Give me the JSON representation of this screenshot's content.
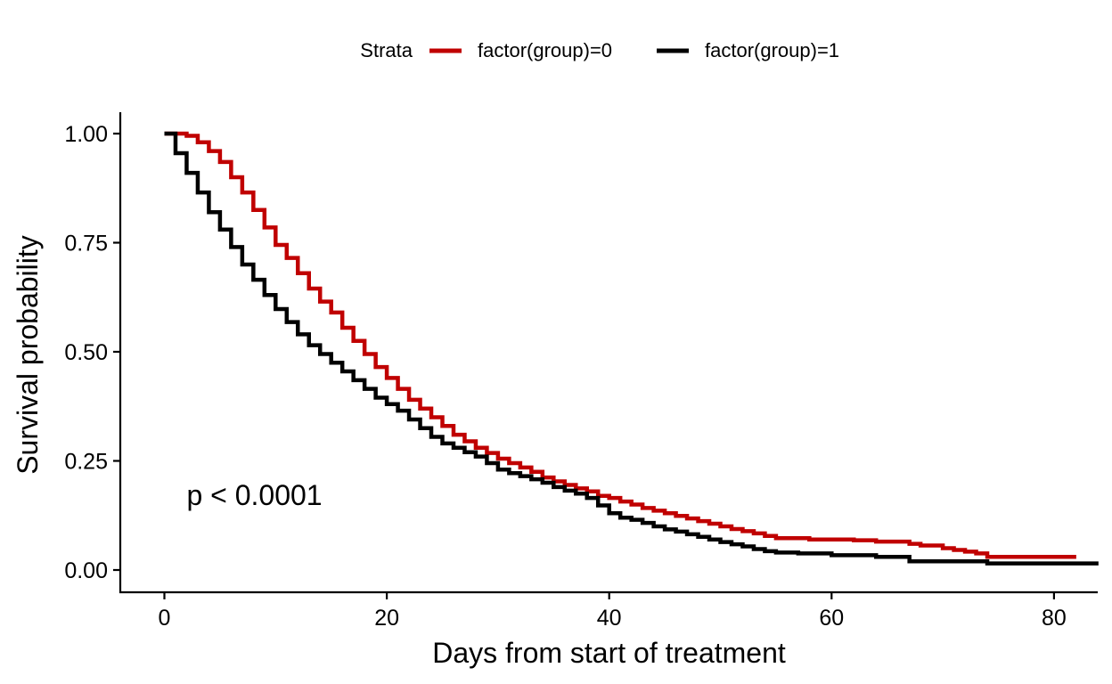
{
  "chart_data": {
    "type": "line",
    "title": "",
    "xlabel": "Days from start of treatment",
    "ylabel": "Survival probability",
    "xlim": [
      -5,
      84
    ],
    "ylim": [
      -0.05,
      1.05
    ],
    "x_ticks": [
      0,
      20,
      40,
      60,
      80
    ],
    "y_ticks": [
      0.0,
      0.25,
      0.5,
      0.75,
      1.0
    ],
    "x_tick_labels": [
      "0",
      "20",
      "40",
      "60",
      "80"
    ],
    "y_tick_labels": [
      "0.00",
      "0.25",
      "0.50",
      "0.75",
      "1.00"
    ],
    "grid": false,
    "step": true,
    "legend": {
      "title": "Strata",
      "position": "top",
      "entries": [
        "factor(group)=0",
        "factor(group)=1"
      ]
    },
    "annotation": {
      "text": "p < 0.0001",
      "x": 2,
      "y": 0.19
    },
    "series": [
      {
        "name": "factor(group)=0",
        "color": "#C00000",
        "points": [
          [
            0,
            1.0
          ],
          [
            1,
            1.0
          ],
          [
            2,
            0.995
          ],
          [
            3,
            0.98
          ],
          [
            4,
            0.96
          ],
          [
            5,
            0.935
          ],
          [
            6,
            0.9
          ],
          [
            7,
            0.865
          ],
          [
            8,
            0.825
          ],
          [
            9,
            0.785
          ],
          [
            10,
            0.745
          ],
          [
            11,
            0.715
          ],
          [
            12,
            0.68
          ],
          [
            13,
            0.645
          ],
          [
            14,
            0.615
          ],
          [
            15,
            0.59
          ],
          [
            16,
            0.555
          ],
          [
            17,
            0.525
          ],
          [
            18,
            0.495
          ],
          [
            19,
            0.465
          ],
          [
            20,
            0.44
          ],
          [
            21,
            0.415
          ],
          [
            22,
            0.39
          ],
          [
            23,
            0.37
          ],
          [
            24,
            0.35
          ],
          [
            25,
            0.33
          ],
          [
            26,
            0.31
          ],
          [
            27,
            0.295
          ],
          [
            28,
            0.28
          ],
          [
            29,
            0.268
          ],
          [
            30,
            0.255
          ],
          [
            31,
            0.245
          ],
          [
            32,
            0.235
          ],
          [
            33,
            0.225
          ],
          [
            34,
            0.212
          ],
          [
            35,
            0.203
          ],
          [
            36,
            0.195
          ],
          [
            37,
            0.187
          ],
          [
            38,
            0.18
          ],
          [
            39,
            0.17
          ],
          [
            40,
            0.165
          ],
          [
            41,
            0.157
          ],
          [
            42,
            0.15
          ],
          [
            43,
            0.142
          ],
          [
            44,
            0.136
          ],
          [
            45,
            0.13
          ],
          [
            46,
            0.124
          ],
          [
            47,
            0.118
          ],
          [
            48,
            0.112
          ],
          [
            49,
            0.106
          ],
          [
            50,
            0.1
          ],
          [
            51,
            0.094
          ],
          [
            52,
            0.089
          ],
          [
            53,
            0.084
          ],
          [
            54,
            0.078
          ],
          [
            55,
            0.073
          ],
          [
            58,
            0.07
          ],
          [
            62,
            0.068
          ],
          [
            64,
            0.065
          ],
          [
            67,
            0.06
          ],
          [
            68,
            0.056
          ],
          [
            70,
            0.05
          ],
          [
            71,
            0.046
          ],
          [
            72,
            0.042
          ],
          [
            73,
            0.038
          ],
          [
            74,
            0.03
          ],
          [
            82,
            0.03
          ]
        ]
      },
      {
        "name": "factor(group)=1",
        "color": "#000000",
        "points": [
          [
            0,
            1.0
          ],
          [
            1,
            0.955
          ],
          [
            2,
            0.91
          ],
          [
            3,
            0.865
          ],
          [
            4,
            0.82
          ],
          [
            5,
            0.78
          ],
          [
            6,
            0.74
          ],
          [
            7,
            0.7
          ],
          [
            8,
            0.665
          ],
          [
            9,
            0.63
          ],
          [
            10,
            0.598
          ],
          [
            11,
            0.568
          ],
          [
            12,
            0.54
          ],
          [
            13,
            0.515
          ],
          [
            14,
            0.495
          ],
          [
            15,
            0.475
          ],
          [
            16,
            0.455
          ],
          [
            17,
            0.435
          ],
          [
            18,
            0.415
          ],
          [
            19,
            0.395
          ],
          [
            20,
            0.38
          ],
          [
            21,
            0.365
          ],
          [
            22,
            0.345
          ],
          [
            23,
            0.325
          ],
          [
            24,
            0.305
          ],
          [
            25,
            0.29
          ],
          [
            26,
            0.28
          ],
          [
            27,
            0.27
          ],
          [
            28,
            0.26
          ],
          [
            29,
            0.245
          ],
          [
            30,
            0.23
          ],
          [
            31,
            0.222
          ],
          [
            32,
            0.215
          ],
          [
            33,
            0.208
          ],
          [
            34,
            0.2
          ],
          [
            35,
            0.19
          ],
          [
            36,
            0.182
          ],
          [
            37,
            0.175
          ],
          [
            38,
            0.165
          ],
          [
            39,
            0.148
          ],
          [
            40,
            0.13
          ],
          [
            41,
            0.12
          ],
          [
            42,
            0.115
          ],
          [
            43,
            0.108
          ],
          [
            44,
            0.1
          ],
          [
            45,
            0.093
          ],
          [
            46,
            0.088
          ],
          [
            47,
            0.082
          ],
          [
            48,
            0.076
          ],
          [
            49,
            0.07
          ],
          [
            50,
            0.064
          ],
          [
            51,
            0.059
          ],
          [
            52,
            0.054
          ],
          [
            53,
            0.048
          ],
          [
            54,
            0.043
          ],
          [
            55,
            0.04
          ],
          [
            57,
            0.038
          ],
          [
            60,
            0.034
          ],
          [
            64,
            0.03
          ],
          [
            67,
            0.02
          ],
          [
            74,
            0.015
          ],
          [
            84,
            0.015
          ]
        ]
      }
    ]
  }
}
